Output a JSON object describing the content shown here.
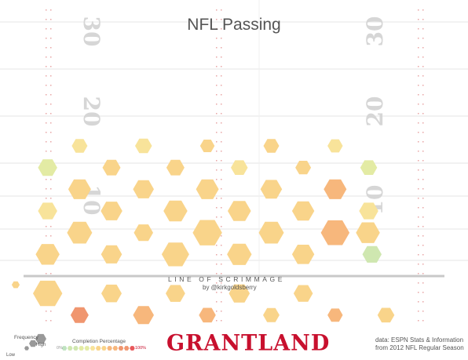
{
  "title": "NFL Passing",
  "line_of_scrimmage": "LINE OF SCRIMMAGE",
  "byline": "by @kirkgoldsberry",
  "brand": "GRANTLAND",
  "source_line1": "data: ESPN Stats & Information",
  "source_line2": "from 2012 NFL Regular Season",
  "legend": {
    "frequency_title": "Frequency",
    "frequency_low": "Low",
    "frequency_high": "High",
    "completion_title": "Completion Percentage",
    "completion_low": "0%",
    "completion_high": "100%"
  },
  "field": {
    "yard_numbers": [
      {
        "label": "30",
        "side": "left"
      },
      {
        "label": "20",
        "side": "left"
      },
      {
        "label": "10",
        "side": "left"
      },
      {
        "label": "30",
        "side": "right"
      },
      {
        "label": "20",
        "side": "right"
      },
      {
        "label": "10",
        "side": "right"
      }
    ]
  },
  "colors": {
    "low_completion": "#bfe3c0",
    "mid_completion": "#fbe79a",
    "high_completion": "#e8575a",
    "field_lines": "#e6e6e6",
    "brand": "#c8102e"
  },
  "chart_data": {
    "type": "heatmap",
    "subtype": "hexbin",
    "title": "NFL Passing",
    "size_encoding": "frequency",
    "color_encoding": "completion_percentage",
    "color_range": [
      "0%",
      "100%"
    ],
    "x_unit": "yards from left sideline",
    "y_unit": "yards downfield from line of scrimmage",
    "bins": [
      {
        "x": 3.9,
        "y": -2,
        "frequency": 0.98,
        "completion": 0.6
      },
      {
        "x": 11.7,
        "y": -2,
        "frequency": 0.6,
        "completion": 0.59
      },
      {
        "x": 19.5,
        "y": -2,
        "frequency": 0.56,
        "completion": 0.61
      },
      {
        "x": 27.3,
        "y": -2,
        "frequency": 0.62,
        "completion": 0.6
      },
      {
        "x": 35.1,
        "y": -2,
        "frequency": 0.55,
        "completion": 0.62
      },
      {
        "x": 7.8,
        "y": -4.5,
        "frequency": 0.5,
        "completion": 0.8
      },
      {
        "x": 15.6,
        "y": -4.5,
        "frequency": 0.62,
        "completion": 0.65
      },
      {
        "x": 23.4,
        "y": -4.5,
        "frequency": 0.45,
        "completion": 0.69
      },
      {
        "x": 31.2,
        "y": -4.5,
        "frequency": 0.43,
        "completion": 0.62
      },
      {
        "x": 39,
        "y": -4.5,
        "frequency": 0.38,
        "completion": 0.68
      },
      {
        "x": 45.2,
        "y": -4.5,
        "frequency": 0.45,
        "completion": 0.62
      },
      {
        "x": 0,
        "y": -1,
        "frequency": 0.07,
        "completion": 0.5
      },
      {
        "x": 43.5,
        "y": 2.5,
        "frequency": 0.55,
        "completion": 0.14
      },
      {
        "x": 3.9,
        "y": 2.5,
        "frequency": 0.75,
        "completion": 0.64
      },
      {
        "x": 7.8,
        "y": 5,
        "frequency": 0.8,
        "completion": 0.63
      },
      {
        "x": 11.7,
        "y": 2.5,
        "frequency": 0.62,
        "completion": 0.62
      },
      {
        "x": 15.6,
        "y": 5,
        "frequency": 0.55,
        "completion": 0.61
      },
      {
        "x": 19.5,
        "y": 2.5,
        "frequency": 0.9,
        "completion": 0.58
      },
      {
        "x": 23.4,
        "y": 5,
        "frequency": 0.98,
        "completion": 0.57
      },
      {
        "x": 27.3,
        "y": 2.5,
        "frequency": 0.78,
        "completion": 0.63
      },
      {
        "x": 31.2,
        "y": 5,
        "frequency": 0.8,
        "completion": 0.62
      },
      {
        "x": 35.1,
        "y": 2.5,
        "frequency": 0.68,
        "completion": 0.64
      },
      {
        "x": 39,
        "y": 5,
        "frequency": 0.95,
        "completion": 0.72
      },
      {
        "x": 43,
        "y": 5,
        "frequency": 0.75,
        "completion": 0.62
      },
      {
        "x": 3.9,
        "y": 7.5,
        "frequency": 0.55,
        "completion": 0.38
      },
      {
        "x": 7.8,
        "y": 10,
        "frequency": 0.7,
        "completion": 0.6
      },
      {
        "x": 11.7,
        "y": 7.5,
        "frequency": 0.65,
        "completion": 0.52
      },
      {
        "x": 15.6,
        "y": 10,
        "frequency": 0.62,
        "completion": 0.62
      },
      {
        "x": 19.5,
        "y": 7.5,
        "frequency": 0.75,
        "completion": 0.55
      },
      {
        "x": 23.4,
        "y": 10,
        "frequency": 0.7,
        "completion": 0.62
      },
      {
        "x": 27.3,
        "y": 7.5,
        "frequency": 0.72,
        "completion": 0.5
      },
      {
        "x": 31.2,
        "y": 10,
        "frequency": 0.65,
        "completion": 0.6
      },
      {
        "x": 35.1,
        "y": 7.5,
        "frequency": 0.68,
        "completion": 0.6
      },
      {
        "x": 39,
        "y": 10,
        "frequency": 0.7,
        "completion": 0.7
      },
      {
        "x": 43.1,
        "y": 7.5,
        "frequency": 0.55,
        "completion": 0.43
      },
      {
        "x": 3.9,
        "y": 12.5,
        "frequency": 0.55,
        "completion": 0.3
      },
      {
        "x": 7.8,
        "y": 15,
        "frequency": 0.4,
        "completion": 0.4
      },
      {
        "x": 11.7,
        "y": 12.5,
        "frequency": 0.5,
        "completion": 0.5
      },
      {
        "x": 15.6,
        "y": 15,
        "frequency": 0.45,
        "completion": 0.48
      },
      {
        "x": 19.5,
        "y": 12.5,
        "frequency": 0.5,
        "completion": 0.55
      },
      {
        "x": 23.4,
        "y": 15,
        "frequency": 0.35,
        "completion": 0.5
      },
      {
        "x": 27.3,
        "y": 12.5,
        "frequency": 0.45,
        "completion": 0.45
      },
      {
        "x": 31.2,
        "y": 15,
        "frequency": 0.4,
        "completion": 0.5
      },
      {
        "x": 35.1,
        "y": 12.5,
        "frequency": 0.4,
        "completion": 0.52
      },
      {
        "x": 39,
        "y": 15,
        "frequency": 0.38,
        "completion": 0.48
      },
      {
        "x": 43.1,
        "y": 12.5,
        "frequency": 0.45,
        "completion": 0.3
      }
    ],
    "xlim": [
      0,
      53.3
    ],
    "ylim": [
      -8,
      30
    ]
  }
}
